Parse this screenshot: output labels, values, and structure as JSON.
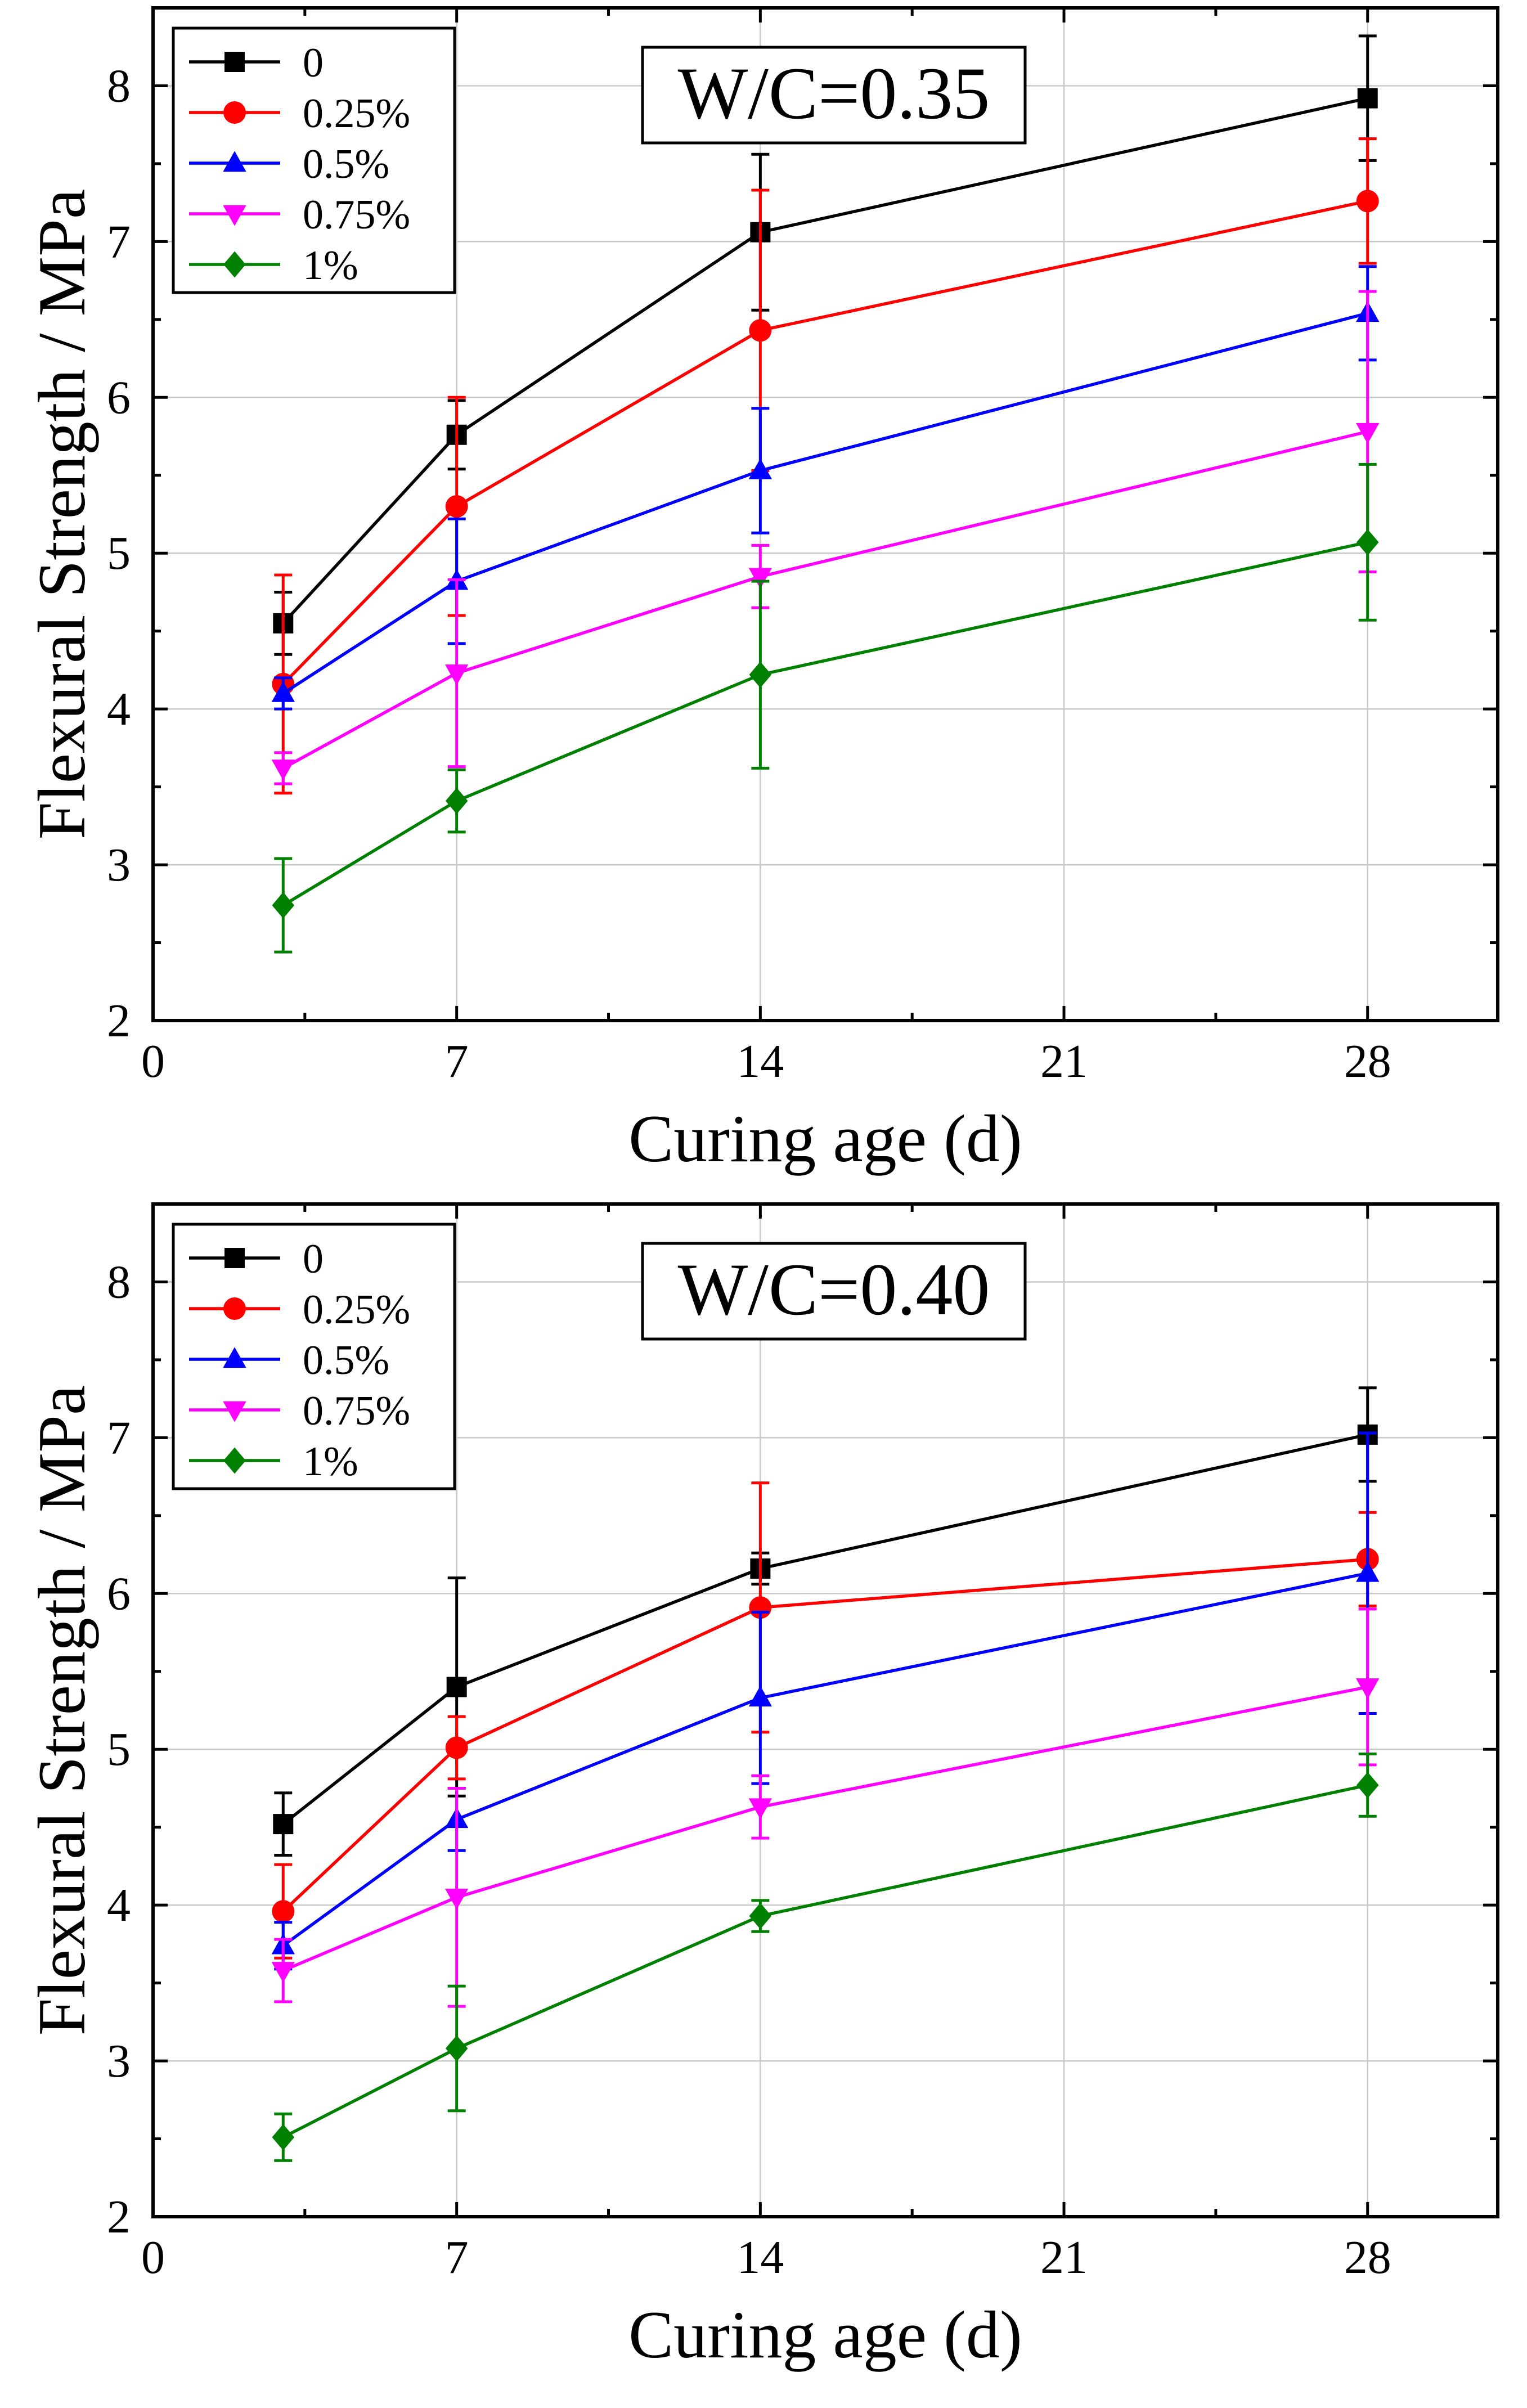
{
  "chart_data": [
    {
      "type": "line",
      "title": "W/C=0.35",
      "xlabel": "Curing age (d)",
      "ylabel": "Flexural Strength / MPa",
      "xlim": [
        0,
        31
      ],
      "ylim": [
        2,
        8.5
      ],
      "xticks": [
        0,
        7,
        14,
        21,
        28
      ],
      "yticks": [
        2,
        3,
        4,
        5,
        6,
        7,
        8
      ],
      "grid": true,
      "legend_position": "top-left",
      "x": [
        3,
        7,
        14,
        28
      ],
      "series": [
        {
          "name": "0",
          "color": "#000000",
          "marker": "square",
          "values": [
            4.55,
            5.76,
            7.06,
            7.92
          ],
          "errors": [
            0.2,
            0.22,
            0.5,
            0.4
          ]
        },
        {
          "name": "0.25%",
          "color": "#ff0000",
          "marker": "circle",
          "values": [
            4.16,
            5.3,
            6.43,
            7.26
          ],
          "errors": [
            0.7,
            0.7,
            0.9,
            0.4
          ]
        },
        {
          "name": "0.5%",
          "color": "#0000ff",
          "marker": "triangle-up",
          "values": [
            4.1,
            4.82,
            5.53,
            6.54
          ],
          "errors": [
            0.1,
            0.4,
            0.4,
            0.3
          ]
        },
        {
          "name": "0.75%",
          "color": "#ff00ff",
          "marker": "triangle-down",
          "values": [
            3.62,
            4.23,
            4.85,
            5.78
          ],
          "errors": [
            0.1,
            0.6,
            0.2,
            0.9
          ]
        },
        {
          "name": "1%",
          "color": "#008000",
          "marker": "diamond",
          "values": [
            2.74,
            3.41,
            4.22,
            5.07
          ],
          "errors": [
            0.3,
            0.2,
            0.6,
            0.5
          ]
        }
      ]
    },
    {
      "type": "line",
      "title": "W/C=0.40",
      "xlabel": "Curing age (d)",
      "ylabel": "Flexural Strength / MPa",
      "xlim": [
        0,
        31
      ],
      "ylim": [
        2,
        8.5
      ],
      "xticks": [
        0,
        7,
        14,
        21,
        28
      ],
      "yticks": [
        2,
        3,
        4,
        5,
        6,
        7,
        8
      ],
      "grid": true,
      "legend_position": "top-left",
      "x": [
        3,
        7,
        14,
        28
      ],
      "series": [
        {
          "name": "0",
          "color": "#000000",
          "marker": "square",
          "values": [
            4.52,
            5.4,
            6.16,
            7.02
          ],
          "errors": [
            0.2,
            0.7,
            0.1,
            0.3
          ]
        },
        {
          "name": "0.25%",
          "color": "#ff0000",
          "marker": "circle",
          "values": [
            3.96,
            5.01,
            5.91,
            6.22
          ],
          "errors": [
            0.3,
            0.2,
            0.8,
            0.3
          ]
        },
        {
          "name": "0.5%",
          "color": "#0000ff",
          "marker": "triangle-up",
          "values": [
            3.74,
            4.55,
            5.33,
            6.13
          ],
          "errors": [
            0.15,
            0.2,
            0.55,
            0.9
          ]
        },
        {
          "name": "0.75%",
          "color": "#ff00ff",
          "marker": "triangle-down",
          "values": [
            3.58,
            4.05,
            4.63,
            5.4
          ],
          "errors": [
            0.2,
            0.7,
            0.2,
            0.5
          ]
        },
        {
          "name": "1%",
          "color": "#008000",
          "marker": "diamond",
          "values": [
            2.51,
            3.08,
            3.93,
            4.77
          ],
          "errors": [
            0.15,
            0.4,
            0.1,
            0.2
          ]
        }
      ]
    }
  ]
}
